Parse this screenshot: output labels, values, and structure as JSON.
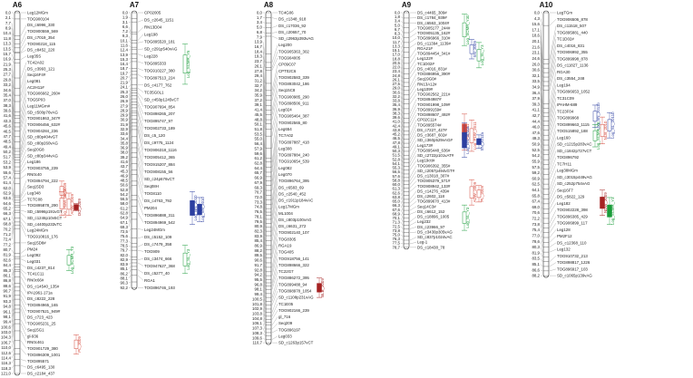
{
  "groups": [
    {
      "title": "A6",
      "positions": [
        "0,0",
        "2,1",
        "7,7",
        "8,9",
        "10,4",
        "11,8",
        "13,3",
        "13,5",
        "15,7",
        "16,9",
        "21,9",
        "25,3",
        "27,7",
        "29,8",
        "33,2",
        "34,6",
        "35,4",
        "37,0",
        "38,3",
        "39,6",
        "41,6",
        "43,3",
        "45,6",
        "46,5",
        "47,7",
        "48,5",
        "49,4",
        "50,2",
        "51,7",
        "53,2",
        "53,9",
        "55,6",
        "57,4",
        "61,4",
        "62,0",
        "62,9",
        "63,6",
        "64,6",
        "65,2",
        "66,3",
        "67,1",
        "68,8",
        "70,2",
        "71,2",
        "72,4",
        "77,2",
        "80,7",
        "81,9",
        "82,6",
        "84,4",
        "85,3",
        "86,1",
        "86,8",
        "88,6",
        "90,7",
        "91,9",
        "93,3",
        "94,8",
        "96,1",
        "98,1",
        "99,4",
        "100,6",
        "103,0",
        "104,3",
        "106,7",
        "110,0",
        "112,6",
        "114,4",
        "116,3",
        "118,3",
        "121,0"
      ],
      "markers": [
        "Leg12MGm",
        "TOG900104",
        "DS_c6996_330",
        "TOG900559_569",
        "DS_c7019_354",
        "TOG90218_115",
        "DS_c8452_220",
        "Leg35S",
        "TC42A02",
        "DS_c3993_121",
        "Seq16F4#",
        "Leg081",
        "AC2H11#",
        "TOG906662_260#",
        "TOG5P03",
        "Leg11MGm#",
        "SD_c500p76vAG",
        "TOG901863_347#",
        "TOG906456_632#",
        "TOG904284_236",
        "SD_c80p404vGT",
        "SD_c80p260vAG",
        "Seq20G8",
        "SD_c80p344vAG",
        "Leg186",
        "TOG903755_239",
        "RN0c40",
        "TOG894794_222",
        "Seq15D3",
        "Leg348",
        "TCTC08",
        "TOG895878_290",
        "SD_c5996p191vGT",
        "SD_c1246p10v5CT",
        "SD_c4400p233vTC",
        "Leg24MGm",
        "TOG910816_176",
        "Seq15D8#",
        "PM24",
        "Leg092",
        "Leg031",
        "DS_c4237_814",
        "TC41C11",
        "RN0c66#",
        "DS_c14540_135#",
        "IPA1961-171a",
        "DS_c8222_228",
        "TOG894965_165",
        "TOG907521_949#",
        "DS_c723_423",
        "TOG905231_25",
        "Seq15G1",
        "gl-936",
        "RN0c461",
        "TOG901729_380",
        "TOG896309_1001",
        "TOG895571",
        "DS_c6495_130",
        "DS_c2184_437"
      ],
      "qtls": [
        {
          "label": "TB_2009",
          "color": "#d4483b",
          "style": "open",
          "from": 56.5,
          "to": 63.0
        },
        {
          "label": "ADW_2009",
          "color": "#d4483b",
          "style": "open",
          "from": 60.5,
          "to": 68.0
        },
        {
          "label": "DO_2009",
          "color": "#a52222",
          "style": "solid",
          "from": 64.0,
          "to": 66.5
        },
        {
          "label": "Log_PBW_2009",
          "color": "#d4483b",
          "style": "open",
          "from": 60.0,
          "to": 68.0
        },
        {
          "label": "Log_SCMR_Y3",
          "color": "#1a9c3a",
          "style": "open",
          "from": 79.5,
          "to": 86.5
        },
        {
          "label": "PL_2009",
          "color": "#d4483b",
          "style": "open",
          "from": 108.0,
          "to": 114.5
        }
      ]
    },
    {
      "title": "A7",
      "positions": [
        "0,0",
        "1,9",
        "3,1",
        "6,6",
        "7,2",
        "9,3",
        "10,1",
        "11,6",
        "12,4",
        "13,9",
        "15,3",
        "16,4",
        "18,7",
        "19,7",
        "20,7",
        "21,9",
        "24,1",
        "25,3",
        "26,0",
        "26,9",
        "27,9",
        "28,9",
        "29,9",
        "30,9",
        "31,9",
        "32,9",
        "33,6",
        "34,4",
        "35,8",
        "36,9",
        "38,0",
        "39,2",
        "41,6",
        "43,7",
        "45,3",
        "46,9",
        "48,5",
        "50,6",
        "52,8",
        "54,2",
        "56,5",
        "58,0",
        "61,2",
        "62,8",
        "64,9",
        "67,1",
        "69,3",
        "72,5",
        "75,6",
        "77,3",
        "78,5",
        "79,7",
        "82,0",
        "82,9",
        "83,9",
        "85,1",
        "86,2",
        "88,1",
        "90,3",
        "92,2"
      ],
      "markers": [
        "CP02005",
        "DS_c2645_1151",
        "RN13D04",
        "Leg198",
        "TOG895520_181",
        "SD_c291p540vAG",
        "Leg228",
        "TOG895333",
        "TOG910227_380",
        "TOG897513_224",
        "DS_c4177_762",
        "TC35G0L1",
        "SD_c450p1245vCT",
        "TOG907694_854",
        "TOG898265_207",
        "TOG895747_97",
        "TOG902733_189",
        "DS_c5_120",
        "DS_c9775_1124",
        "TOG906318_1116",
        "TOG905412_365",
        "TOG915207_884",
        "TOG908155_56",
        "SD_c24p676vCT",
        "Seq08H",
        "TOG8110",
        "DS_c4763_792",
        "PM204",
        "TOG896888_311",
        "TOG894969_542",
        "Leg24MGm",
        "DS_c5152_109",
        "DS_c7479_358",
        "TOG909",
        "DS_c3474_666",
        "TOG947627_368",
        "DS_c5277_40",
        "RGA1",
        "TOG896746_193"
      ],
      "qtls": [
        {
          "label": "Log_SCMR_Y6",
          "color": "#1a9c3a",
          "style": "open",
          "from": 10.5,
          "to": 24.0
        },
        {
          "label": "Log_BN_2010",
          "color": "#2b3ea0",
          "style": "solid",
          "from": 60.0,
          "to": 71.0
        },
        {
          "label": "Log_SN_2010",
          "color": "#2b3ea0",
          "style": "solid",
          "from": 62.0,
          "to": 70.0
        },
        {
          "label": "Log_SL_Y3",
          "color": "#1a9c3a",
          "style": "open",
          "from": 78.0,
          "to": 87.5
        }
      ]
    },
    {
      "title": "A8",
      "positions": [
        "0,0",
        "1,7",
        "3,4",
        "5,0",
        "6,8",
        "7,9",
        "13,9",
        "16,7",
        "18,4",
        "19,3",
        "23,7",
        "26,1",
        "27,8",
        "29,4",
        "31,2",
        "32,7",
        "34,2",
        "35,9",
        "37,2",
        "39,1",
        "41,4",
        "45,5",
        "48,8",
        "50,1",
        "51,8",
        "53,5",
        "55,0",
        "56,4",
        "57,9",
        "59,6",
        "61,2",
        "62,8",
        "64,4",
        "65,7",
        "66,9",
        "67,9",
        "69,3",
        "70,7",
        "72,0",
        "73,3",
        "74,8",
        "76,5",
        "78,1",
        "79,5",
        "80,9",
        "82,3",
        "83,9",
        "85,4",
        "86,9",
        "88,2",
        "89,5",
        "90,6",
        "91,7",
        "92,8",
        "94,2",
        "95,5",
        "96,8",
        "98,1",
        "99,4",
        "100,5",
        "101,8",
        "102,9",
        "103,8",
        "104,8",
        "106,1",
        "107,3",
        "108,3",
        "109,6",
        "110,7"
      ],
      "markers": [
        "TC4G06",
        "DS_c1348_918",
        "DS_c17036_92",
        "DS_c20657_70",
        "SD_c2963p393vAG",
        "Leg200",
        "TOG905363_302",
        "TOG904005",
        "CP09C07",
        "CPT02C6",
        "TOG902583_339",
        "TOG893042_186",
        "Seq15C8",
        "TOG900985_290",
        "TOG898506_911",
        "Leg024",
        "TOG905464_387",
        "TOG902565_80",
        "Leg654",
        "TC7A02",
        "TOG897887_418",
        "Leg308",
        "TOG897884_240",
        "TOG910654_539",
        "Leg082",
        "Leg070",
        "TOG896764_395",
        "DS_c6583_69",
        "DS_c2540_452",
        "DS_c1911p184vAC",
        "Leg17MGm",
        "ML1004",
        "DS_c803p100vAG",
        "DS_c6631_272",
        "TOG902140_107",
        "TOG8305",
        "RGA19",
        "TOG405",
        "TOG918756_141",
        "TOG898666_322",
        "TC22G7",
        "TOG886272_395",
        "TOG899488_94",
        "TOG898978_1054",
        "SD_c1108p231vAG",
        "TC1E05",
        "TOG902166_239",
        "gl_716",
        "Seq209",
        "TOG896197",
        "Leg033",
        "SD_c1263p157vCT"
      ],
      "qtls": [
        {
          "label": "BLB_2009",
          "color": "#a52222",
          "style": "solid",
          "from": 89.0,
          "to": 95.5
        }
      ]
    },
    {
      "title": "A9",
      "positions": [
        "0,0",
        "1,8",
        "3,4",
        "5,0",
        "6,7",
        "8,3",
        "10,0",
        "11,7",
        "13,3",
        "15,1",
        "17,0",
        "18,8",
        "20,5",
        "22,0",
        "23,4",
        "24,8",
        "26,1",
        "27,5",
        "29,0",
        "30,6",
        "32,2",
        "33,8",
        "35,4",
        "36,9",
        "38,3",
        "39,6",
        "41,0",
        "42,4",
        "43,8",
        "45,2",
        "46,5",
        "47,8",
        "49,1",
        "50,3",
        "51,5",
        "52,8",
        "54,1",
        "55,3",
        "56,5",
        "57,6",
        "58,8",
        "60,0",
        "61,3",
        "62,6",
        "63,8",
        "65,0",
        "66,3",
        "67,6",
        "68,9",
        "70,1",
        "71,3",
        "72,5",
        "73,8",
        "75,0",
        "76,3",
        "77,5",
        "78,7"
      ],
      "markers": [
        "DS_c4465_309#",
        "DS_c1784_939#",
        "DS_c6563_1004#",
        "TOG905177_244#",
        "TOG905135_162#",
        "TOG896966_310#",
        "DS_c11394_1139#",
        "RGA21#",
        "TOG894454_341#",
        "Leg122#",
        "TC1D02#",
        "DS_c4016_831#",
        "TOG886956_390#",
        "Seq19G0#",
        "RN13A12#",
        "Leg109#",
        "TOG902562_221#",
        "TOG894987#",
        "TOG901998_109#",
        "TOG899159#",
        "TOG898607_492#",
        "CP02C11#",
        "TOG895574#",
        "DS_c7227_427#",
        "DS_c3687_602#",
        "SD_c360p529vAG#",
        "Leg173#",
        "TOG895448_636#",
        "SD_c2722p101vAT#",
        "Leg19ctt#",
        "TOG906392_355#",
        "SD_c2057p494vGT#",
        "DS_c13018_307#",
        "TOG905379_571#",
        "TOG908942_133#",
        "DS_c14276_439#",
        "DS_c2602_118",
        "TOG899670_413#",
        "Seq14C3#",
        "DS_c6612_152",
        "DS_c18896_1005",
        "Leg232",
        "DS_c23966_97",
        "DS_c3430p305vAG",
        "SD_c837p1024vAC",
        "Leg-1",
        "DS_c18438_78"
      ],
      "qtls": [
        {
          "label": "Log_SCMR_Y30",
          "color": "#1a9c3a",
          "style": "open",
          "from": 0.5,
          "to": 11.0
        },
        {
          "label": "SN_2009",
          "color": "#2b3ea0",
          "style": "open",
          "from": 9.0,
          "to": 15.5
        },
        {
          "label": "Log_SL_Y3",
          "color": "#1a9c3a",
          "style": "open",
          "from": 10.0,
          "to": 18.5
        },
        {
          "label": "PN_2011",
          "color": "#d4483b",
          "style": "solid",
          "from": 34.0,
          "to": 46.0
        },
        {
          "label": "Log_PLW_2011",
          "color": "#d4483b",
          "style": "open",
          "from": 36.0,
          "to": 46.5
        },
        {
          "label": "SN_2011a",
          "color": "#2b3ea0",
          "style": "solid",
          "from": 41.0,
          "to": 45.5
        },
        {
          "label": "Log_BN_2011a",
          "color": "#2b3ea0",
          "style": "solid",
          "from": 37.0,
          "to": 48.5
        },
        {
          "label": "ADW_2009",
          "color": "#d4483b",
          "style": "open",
          "from": 56.0,
          "to": 64.5
        },
        {
          "label": "PL_2009",
          "color": "#d4483b",
          "style": "open",
          "from": 58.0,
          "to": 63.5
        },
        {
          "label": "Log_SL_Y3",
          "color": "#1a9c3a",
          "style": "open",
          "from": 64.5,
          "to": 73.0
        }
      ]
    },
    {
      "title": "A10",
      "positions": [
        "0,0",
        "4,3",
        "15,6",
        "17,1",
        "18,6",
        "20,1",
        "21,6",
        "23,1",
        "24,6",
        "26,0",
        "30,6",
        "32,1",
        "33,5",
        "34,9",
        "36,4",
        "37,9",
        "39,3",
        "41,1",
        "42,7",
        "44,4",
        "46,0",
        "47,6",
        "49,3",
        "50,9",
        "52,5",
        "54,2",
        "55,9",
        "57,5",
        "59,2",
        "60,9",
        "62,5",
        "64,1",
        "65,8",
        "67,4",
        "69,0",
        "70,6",
        "72,2",
        "73,8",
        "75,4",
        "77,0",
        "78,6",
        "80,3",
        "81,9",
        "83,5",
        "85,1",
        "86,6",
        "88,2"
      ],
      "markers": [
        "LegTGm",
        "TOG906506_878",
        "DS_c11518_507",
        "TOG895881_440",
        "TC1D02#",
        "DS_c4016_831",
        "TOG906992_355",
        "TOG899998_878",
        "DS_c11827_1136",
        "RGA30",
        "DS_c3554_248",
        "Leg194",
        "TOG896653_1052",
        "TC31C09",
        "IPAHM-689",
        "TC23F04",
        "TOG899968",
        "TOG899663_1115",
        "TOG515892_188",
        "Leg160",
        "SD_c1215p283vAC",
        "SD_c1842p727vCT",
        "TOG896792",
        "TC7H11",
        "Leg38MGm",
        "SD_c3015p449vAG",
        "SD_c252p754vAG",
        "Seq16F7",
        "DS_c5822_129",
        "Leg182",
        "TOG902228_398",
        "TOG896385_429",
        "TOG906899_117",
        "Leg128",
        "PM2F12",
        "DS_c12368_110",
        "Leg132",
        "TOG910732_213",
        "TOG898817_1226",
        "TOG896917_103",
        "SD_c1065p139vAG"
      ],
      "qtls": [
        {
          "label": "Log_SN_2011b",
          "color": "#2b3ea0",
          "style": "open",
          "from": 31.0,
          "to": 38.5
        },
        {
          "label": "NLB_2010",
          "color": "#d4483b",
          "style": "open",
          "from": 35.0,
          "to": 44.0
        },
        {
          "label": "Log_SL_2011b",
          "color": "#2b3ea0",
          "style": "open",
          "from": 33.5,
          "to": 42.0
        },
        {
          "label": "Log_SCMR_Y6",
          "color": "#1a9c3a",
          "style": "open",
          "from": 37.5,
          "to": 45.0
        },
        {
          "label": "NDW_2009",
          "color": "#a52222",
          "style": "solid",
          "from": 59.5,
          "to": 68.0
        },
        {
          "label": "Log_SCMR_Y3",
          "color": "#1a9c3a",
          "style": "solid",
          "from": 62.0,
          "to": 71.0
        }
      ]
    }
  ]
}
